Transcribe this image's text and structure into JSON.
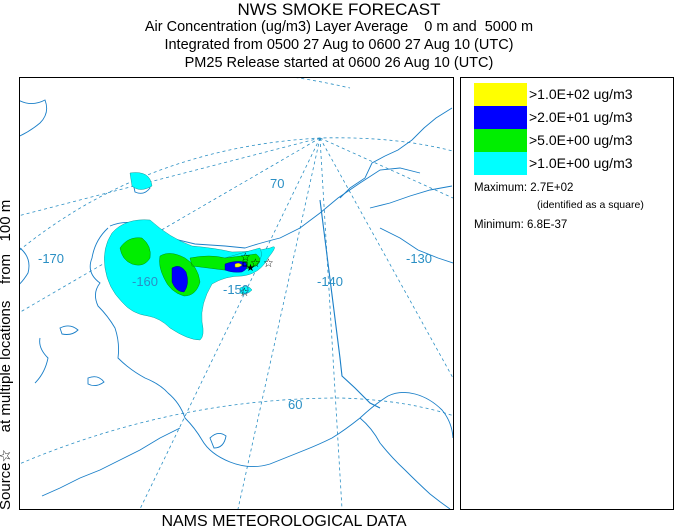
{
  "header": {
    "title": "NWS SMOKE FORECAST",
    "line1": "Air Concentration (ug/m3) Layer Average    0 m and  5000 m",
    "line2": "Integrated from 0500 27 Aug to 0600 27 Aug 10 (UTC)",
    "line3": "PM25 Release started at 0600 26 Aug 10 (UTC)"
  },
  "side_label": "Source☆    at multiple locations    from   100 m",
  "bottom_label": "NAMS METEOROLOGICAL DATA",
  "map": {
    "grid_labels": {
      "lon_170": "-170",
      "lon_160": "-160",
      "lon_150": "-150",
      "lon_140": "-140",
      "lon_130": "-130",
      "lat_70": "70",
      "lat_60": "60"
    },
    "colors": {
      "coast": "#1a7fc8",
      "grid": "#2a8fc4"
    }
  },
  "legend": {
    "items": [
      {
        "label": ">1.0E+02 ug/m3",
        "color": "#ffff00"
      },
      {
        "label": ">2.0E+01 ug/m3",
        "color": "#0000ff"
      },
      {
        "label": ">5.0E+00 ug/m3",
        "color": "#00ee00"
      },
      {
        "label": ">1.0E+00 ug/m3",
        "color": "#00ffff"
      }
    ],
    "maximum": "Maximum: 2.7E+02",
    "maximum_note": "(identified as a square)",
    "minimum": "Minimum: 6.8E-37"
  }
}
